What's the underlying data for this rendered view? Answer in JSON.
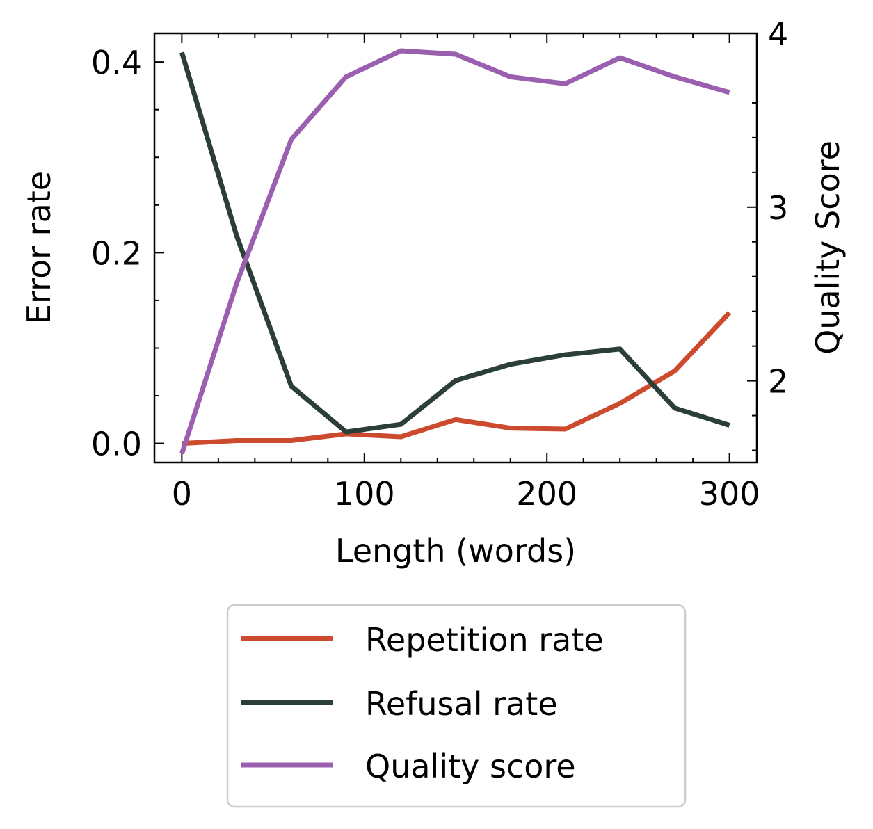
{
  "chart_data": {
    "type": "line",
    "xlabel": "Length (words)",
    "ylabel_left": "Error rate",
    "ylabel_right": "Quality Score",
    "xlim": [
      -15,
      315
    ],
    "ylim_left": [
      -0.02,
      0.43
    ],
    "ylim_right": [
      1.53,
      4.0
    ],
    "x_ticks": [
      0,
      100,
      200,
      300
    ],
    "y_left_ticks": [
      0.0,
      0.2,
      0.4
    ],
    "y_left_tick_labels": [
      "0.0",
      "0.2",
      "0.4"
    ],
    "y_right_ticks": [
      2,
      3,
      4
    ],
    "y_right_tick_labels": [
      "2",
      "3",
      "4"
    ],
    "x": [
      0,
      30,
      60,
      90,
      120,
      150,
      180,
      210,
      240,
      270,
      300
    ],
    "series": [
      {
        "name": "Repetition rate",
        "axis": "left",
        "color": "#cc4a2e",
        "values": [
          0.0,
          0.003,
          0.003,
          0.01,
          0.007,
          0.025,
          0.016,
          0.015,
          0.042,
          0.076,
          0.137
        ]
      },
      {
        "name": "Refusal rate",
        "axis": "left",
        "color": "#2b3f38",
        "values": [
          0.41,
          0.218,
          0.06,
          0.012,
          0.02,
          0.066,
          0.083,
          0.093,
          0.099,
          0.037,
          0.019
        ]
      },
      {
        "name": "Quality score",
        "axis": "right",
        "color": "#9b5fb0",
        "values": [
          1.58,
          2.56,
          3.39,
          3.75,
          3.9,
          3.88,
          3.75,
          3.71,
          3.86,
          3.75,
          3.66
        ]
      }
    ],
    "legend_position": "below",
    "grid": false
  }
}
